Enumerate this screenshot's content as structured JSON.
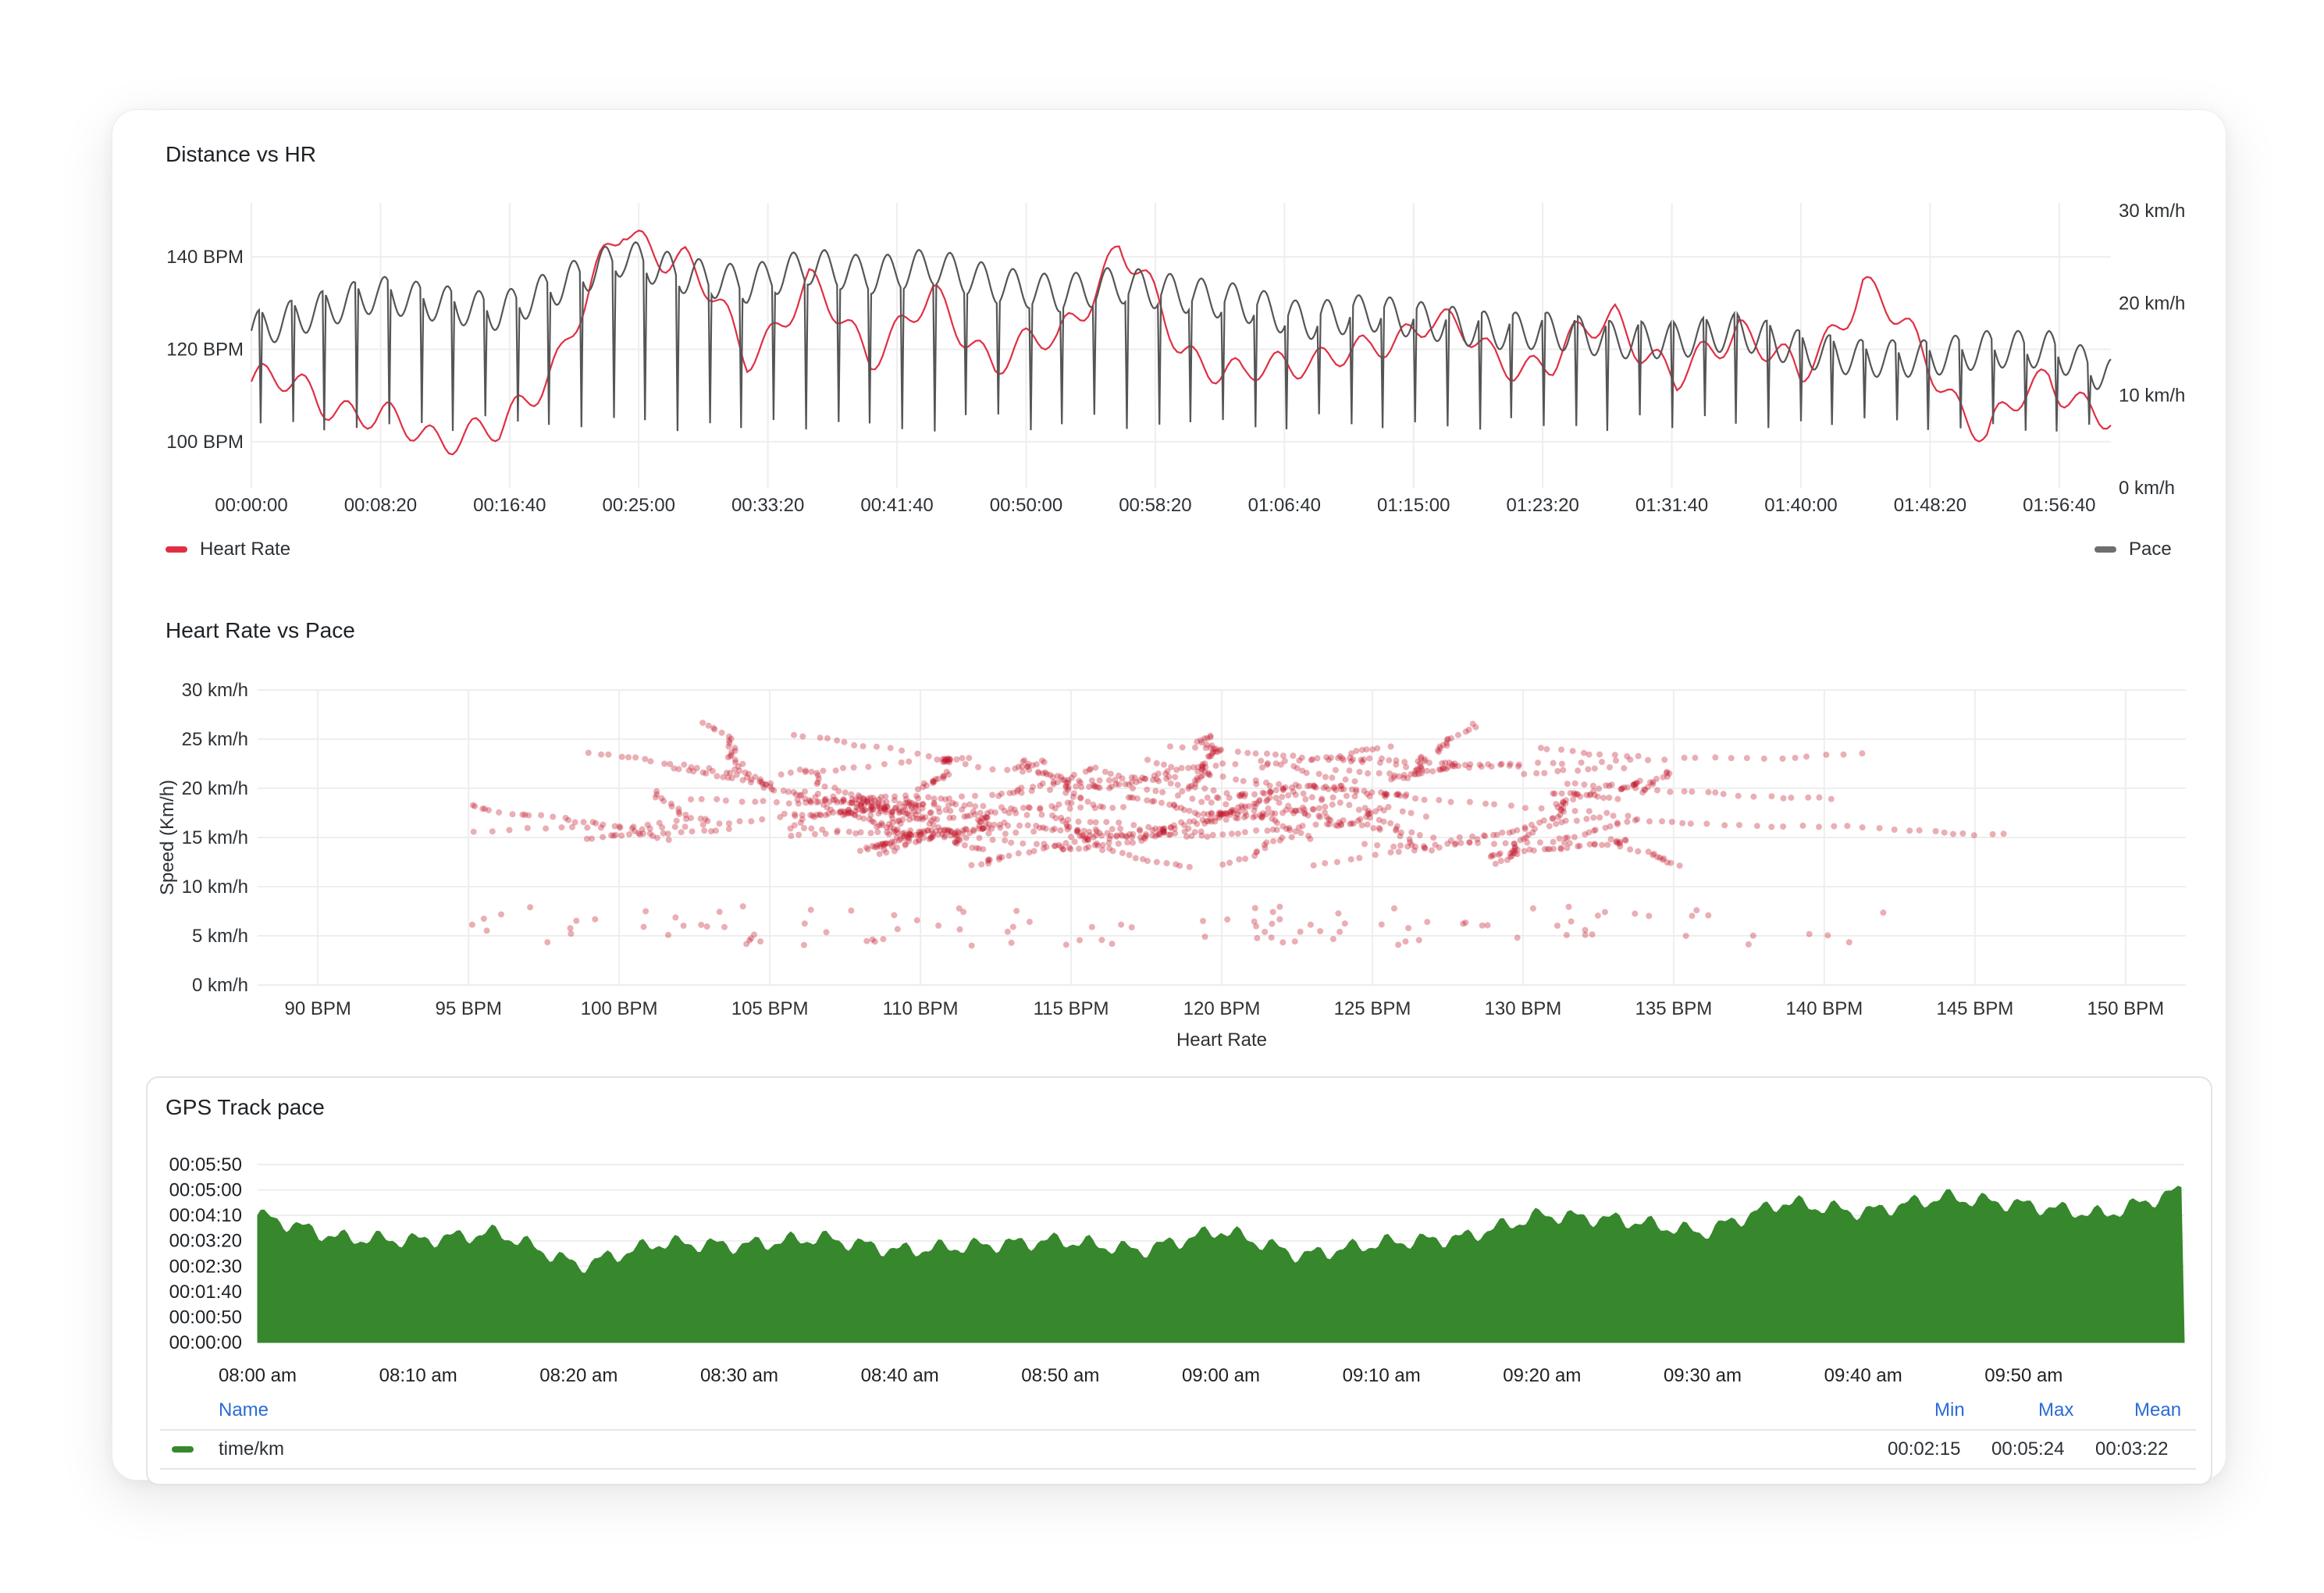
{
  "panels": {
    "distance_hr": {
      "title": "Distance vs HR"
    },
    "hr_pace": {
      "title": "Heart Rate vs Pace"
    },
    "gps_pace": {
      "title": "GPS Track pace"
    }
  },
  "gps_table": {
    "headers": {
      "name": "Name",
      "min": "Min",
      "max": "Max",
      "mean": "Mean"
    },
    "row": {
      "name": "time/km",
      "min": "00:02:15",
      "max": "00:05:24",
      "mean": "00:03:22",
      "color": "#37872d"
    }
  },
  "chart_data": [
    {
      "type": "line",
      "title": "Distance vs HR",
      "x_ticks": [
        "00:00:00",
        "00:08:20",
        "00:16:40",
        "00:25:00",
        "00:33:20",
        "00:41:40",
        "00:50:00",
        "00:58:20",
        "01:06:40",
        "01:15:00",
        "01:23:20",
        "01:31:40",
        "01:40:00",
        "01:48:20",
        "01:56:40"
      ],
      "x_unit_seconds": 500,
      "y_left": {
        "ticks": [
          "100 BPM",
          "120 BPM",
          "140 BPM"
        ],
        "tick_values": [
          100,
          120,
          140
        ],
        "range": [
          90,
          150
        ]
      },
      "y_right": {
        "ticks": [
          "0 km/h",
          "10 km/h",
          "20 km/h",
          "30 km/h"
        ],
        "tick_values": [
          0,
          10,
          20,
          30
        ],
        "range": [
          0,
          30
        ]
      },
      "legend": {
        "placement": "bottom"
      },
      "series": [
        {
          "name": "Heart Rate",
          "axis": "left",
          "color": "#e02f44",
          "x_min": [
            0,
            4,
            8,
            12,
            16,
            20,
            24,
            28,
            32,
            36,
            40,
            44,
            48,
            52,
            56,
            60,
            64,
            68,
            72,
            76,
            80,
            84,
            88,
            92,
            96,
            100,
            104,
            108,
            112,
            116,
            120
          ],
          "values": [
            113,
            111,
            104,
            102,
            101,
            120,
            146,
            139,
            119,
            133,
            120,
            130,
            118,
            122,
            142,
            121,
            113,
            119,
            118,
            128,
            118,
            117,
            128,
            112,
            126,
            113,
            135,
            118,
            101,
            115,
            103
          ]
        },
        {
          "name": "Pace",
          "axis": "right",
          "color": "#666666",
          "x_min": [
            0,
            4,
            8,
            12,
            16,
            20,
            24,
            28,
            32,
            36,
            40,
            44,
            48,
            52,
            56,
            60,
            64,
            68,
            72,
            76,
            80,
            84,
            88,
            92,
            96,
            100,
            104,
            108,
            112,
            116,
            120
          ],
          "values": [
            17,
            19,
            21,
            20,
            19,
            22,
            25,
            23,
            22,
            24,
            23,
            24,
            22,
            21,
            22,
            21,
            20,
            18,
            19,
            18,
            17,
            17,
            16,
            16,
            17,
            15,
            14,
            14,
            15,
            15,
            12
          ],
          "dips_to": 6
        }
      ]
    },
    {
      "type": "scatter",
      "title": "Heart Rate vs Pace",
      "xlabel": "Heart Rate",
      "ylabel": "Speed (Km/h)",
      "x_ticks": [
        "90 BPM",
        "95 BPM",
        "100 BPM",
        "105 BPM",
        "110 BPM",
        "115 BPM",
        "120 BPM",
        "125 BPM",
        "130 BPM",
        "135 BPM",
        "140 BPM",
        "145 BPM",
        "150 BPM"
      ],
      "x_tick_values": [
        90,
        95,
        100,
        105,
        110,
        115,
        120,
        125,
        130,
        135,
        140,
        145,
        150
      ],
      "y_ticks": [
        "0 km/h",
        "5 km/h",
        "10 km/h",
        "15 km/h",
        "20 km/h",
        "25 km/h",
        "30 km/h"
      ],
      "y_tick_values": [
        0,
        5,
        10,
        15,
        20,
        25,
        30
      ],
      "xlim": [
        88,
        152
      ],
      "ylim": [
        0,
        30
      ],
      "color": "#c4162a",
      "cluster": {
        "hr_range": [
          95,
          146
        ],
        "speed_range": [
          12,
          27
        ],
        "center_hr": 118,
        "center_speed": 19
      },
      "low_speed_points": {
        "hr_range": [
          95,
          142
        ],
        "speed_range": [
          4,
          8
        ]
      }
    },
    {
      "type": "area",
      "title": "GPS Track pace",
      "x_ticks": [
        "08:00 am",
        "08:10 am",
        "08:20 am",
        "08:30 am",
        "08:40 am",
        "08:50 am",
        "09:00 am",
        "09:10 am",
        "09:20 am",
        "09:30 am",
        "09:40 am",
        "09:50 am"
      ],
      "y_ticks": [
        "00:00:00",
        "00:00:50",
        "00:01:40",
        "00:02:30",
        "00:03:20",
        "00:04:10",
        "00:05:00",
        "00:05:50"
      ],
      "y_tick_values": [
        0,
        50,
        100,
        150,
        200,
        250,
        300,
        350
      ],
      "ylim": [
        0,
        350
      ],
      "color": "#37872d",
      "series": [
        {
          "name": "time/km",
          "x_min": [
            0,
            5,
            10,
            15,
            20,
            25,
            30,
            35,
            40,
            45,
            50,
            55,
            60,
            65,
            70,
            75,
            80,
            85,
            90,
            95,
            100,
            105,
            110,
            115,
            120
          ],
          "values": [
            250,
            205,
            200,
            215,
            150,
            195,
            190,
            205,
            180,
            190,
            200,
            180,
            220,
            170,
            195,
            205,
            250,
            240,
            215,
            275,
            255,
            285,
            270,
            250,
            300
          ]
        }
      ]
    }
  ]
}
